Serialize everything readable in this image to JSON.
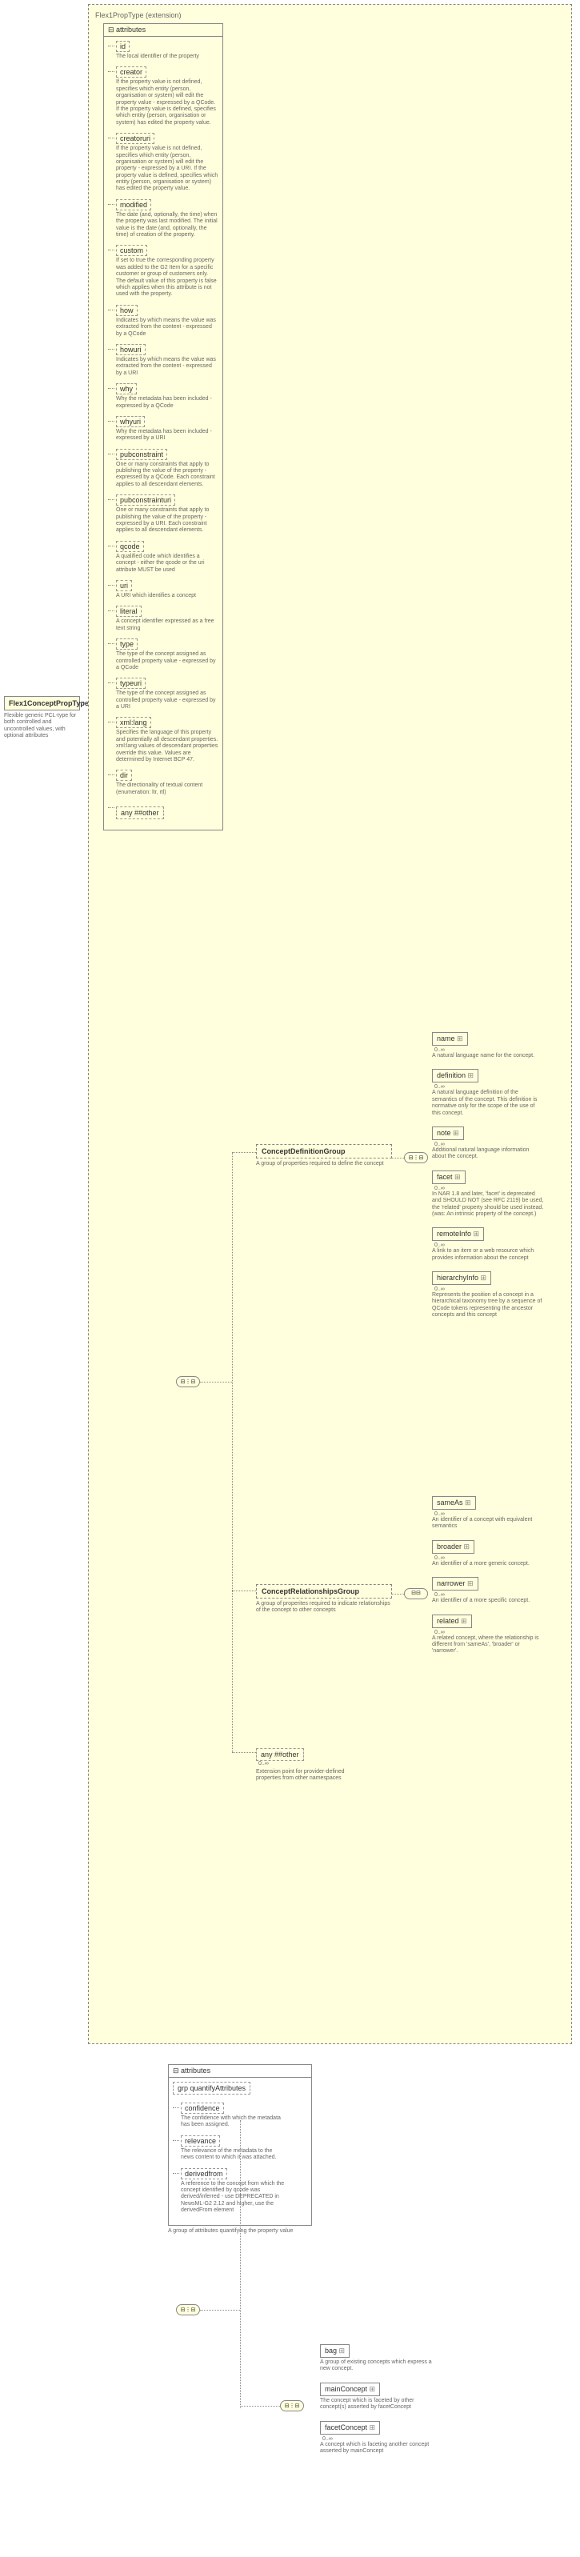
{
  "rootType": {
    "name": "Flex1ConceptPropType",
    "desc": "Flexible generic PCL-type for both controlled and uncontrolled values, with optional attributes"
  },
  "extension": {
    "label": "Flex1PropType (extension)",
    "attributesLabel": "attributes",
    "attrs": [
      {
        "name": "id",
        "desc": "The local identifier of the property"
      },
      {
        "name": "creator",
        "desc": "If the property value is not defined, specifies which entity (person, organisation or system) will edit the property value - expressed by a QCode. If the property value is defined, specifies which entity (person, organisation or system) has edited the property value."
      },
      {
        "name": "creatoruri",
        "desc": "If the property value is not defined, specifies which entity (person, organisation or system) will edit the property - expressed by a URI. If the property value is defined, specifies which entity (person, organisation or system) has edited the property value."
      },
      {
        "name": "modified",
        "desc": "The date (and, optionally, the time) when the property was last modified. The initial value is the date (and, optionally, the time) of creation of the property."
      },
      {
        "name": "custom",
        "desc": "If set to true the corresponding property was added to the G2 Item for a specific customer or group of customers only. The default value of this property is false which applies when this attribute is not used with the property."
      },
      {
        "name": "how",
        "desc": "Indicates by which means the value was extracted from the content - expressed by a QCode"
      },
      {
        "name": "howuri",
        "desc": "Indicates by which means the value was extracted from the content - expressed by a URI"
      },
      {
        "name": "why",
        "desc": "Why the metadata has been included - expressed by a QCode"
      },
      {
        "name": "whyuri",
        "desc": "Why the metadata has been included - expressed by a URI"
      },
      {
        "name": "pubconstraint",
        "desc": "One or many constraints that apply to publishing the value of the property - expressed by a QCode. Each constraint applies to all descendant elements."
      },
      {
        "name": "pubconstrainturi",
        "desc": "One or many constraints that apply to publishing the value of the property - expressed by a URI. Each constraint applies to all descendant elements."
      },
      {
        "name": "qcode",
        "desc": "A qualified code which identifies a concept - either the qcode or the uri attribute MUST be used"
      },
      {
        "name": "uri",
        "desc": "A URI which identifies a concept"
      },
      {
        "name": "literal",
        "desc": "A concept identifier expressed as a free text string"
      },
      {
        "name": "type",
        "desc": "The type of the concept assigned as controlled property value - expressed by a QCode"
      },
      {
        "name": "typeuri",
        "desc": "The type of the concept assigned as controlled property value - expressed by a URI"
      },
      {
        "name": "xml:lang",
        "desc": "Specifies the language of this property and potentially all descendant properties. xml:lang values of descendant properties override this value. Values are determined by Internet BCP 47."
      },
      {
        "name": "dir",
        "desc": "The directionality of textual content (enumeration: ltr, rtl)"
      }
    ],
    "anyOther": "any ##other"
  },
  "conceptDefGroup": {
    "name": "ConceptDefinitionGroup",
    "desc": "A group of properties required to define the concept",
    "elements": [
      {
        "name": "name",
        "desc": "A natural language name for the concept.",
        "card": "0..∞"
      },
      {
        "name": "definition",
        "desc": "A natural language definition of the semantics of the concept. This definition is normative only for the scope of the use of this concept.",
        "card": "0..∞"
      },
      {
        "name": "note",
        "desc": "Additional natural language information about the concept.",
        "card": "0..∞"
      },
      {
        "name": "facet",
        "desc": "In NAR 1.8 and later, 'facet' is deprecated and SHOULD NOT (see RFC 2119) be used, the 'related' property should be used instead. (was: An intrinsic property of the concept.)",
        "card": "0..∞"
      },
      {
        "name": "remoteInfo",
        "desc": "A link to an item or a web resource which provides information about the concept",
        "card": "0..∞"
      },
      {
        "name": "hierarchyInfo",
        "desc": "Represents the position of a concept in a hierarchical taxonomy tree by a sequence of QCode tokens representing the ancestor concepts and this concept",
        "card": "0..∞"
      }
    ]
  },
  "conceptRelGroup": {
    "name": "ConceptRelationshipsGroup",
    "desc": "A group of properites required to indicate relationships of the concept to other concepts",
    "elements": [
      {
        "name": "sameAs",
        "desc": "An identifier of a concept with equivalent semantics",
        "card": "0..∞"
      },
      {
        "name": "broader",
        "desc": "An identifier of a more generic concept.",
        "card": "0..∞"
      },
      {
        "name": "narrower",
        "desc": "An identifier of a more specific concept.",
        "card": "0..∞"
      },
      {
        "name": "related",
        "desc": "A related concept, where the relationship is different from 'sameAs', 'broader' or 'narrower'.",
        "card": "0..∞"
      }
    ]
  },
  "anyOtherElem": {
    "label": "any ##other",
    "card": "0..∞",
    "desc": "Extension point for provider-defined properties from other namespaces"
  },
  "quantify": {
    "boxLabel": "attributes",
    "grpLabel": "grp quantifyAttributes",
    "attrs": [
      {
        "name": "confidence",
        "desc": "The confidence with which the metadata has been assigned."
      },
      {
        "name": "relevance",
        "desc": "The relevance of the metadata to the news content to which it was attached."
      },
      {
        "name": "derivedfrom",
        "desc": "A reference to the concept from which the concept identified by qcode was derived/inferred - use DEPRECATED in NewsML-G2 2.12 and higher, use the derivedFrom element"
      }
    ],
    "desc": "A group of attributes quantifying the property value"
  },
  "bagSection": {
    "elements": [
      {
        "name": "bag",
        "desc": "A group of existing concepts which express a new concept.",
        "card": ""
      },
      {
        "name": "mainConcept",
        "desc": "The concept which is faceted by other concept(s) asserted by facetConcept",
        "card": ""
      },
      {
        "name": "facetConcept",
        "desc": "A concept which is faceting another concept asserted by mainConcept",
        "card": "0..∞"
      }
    ]
  }
}
